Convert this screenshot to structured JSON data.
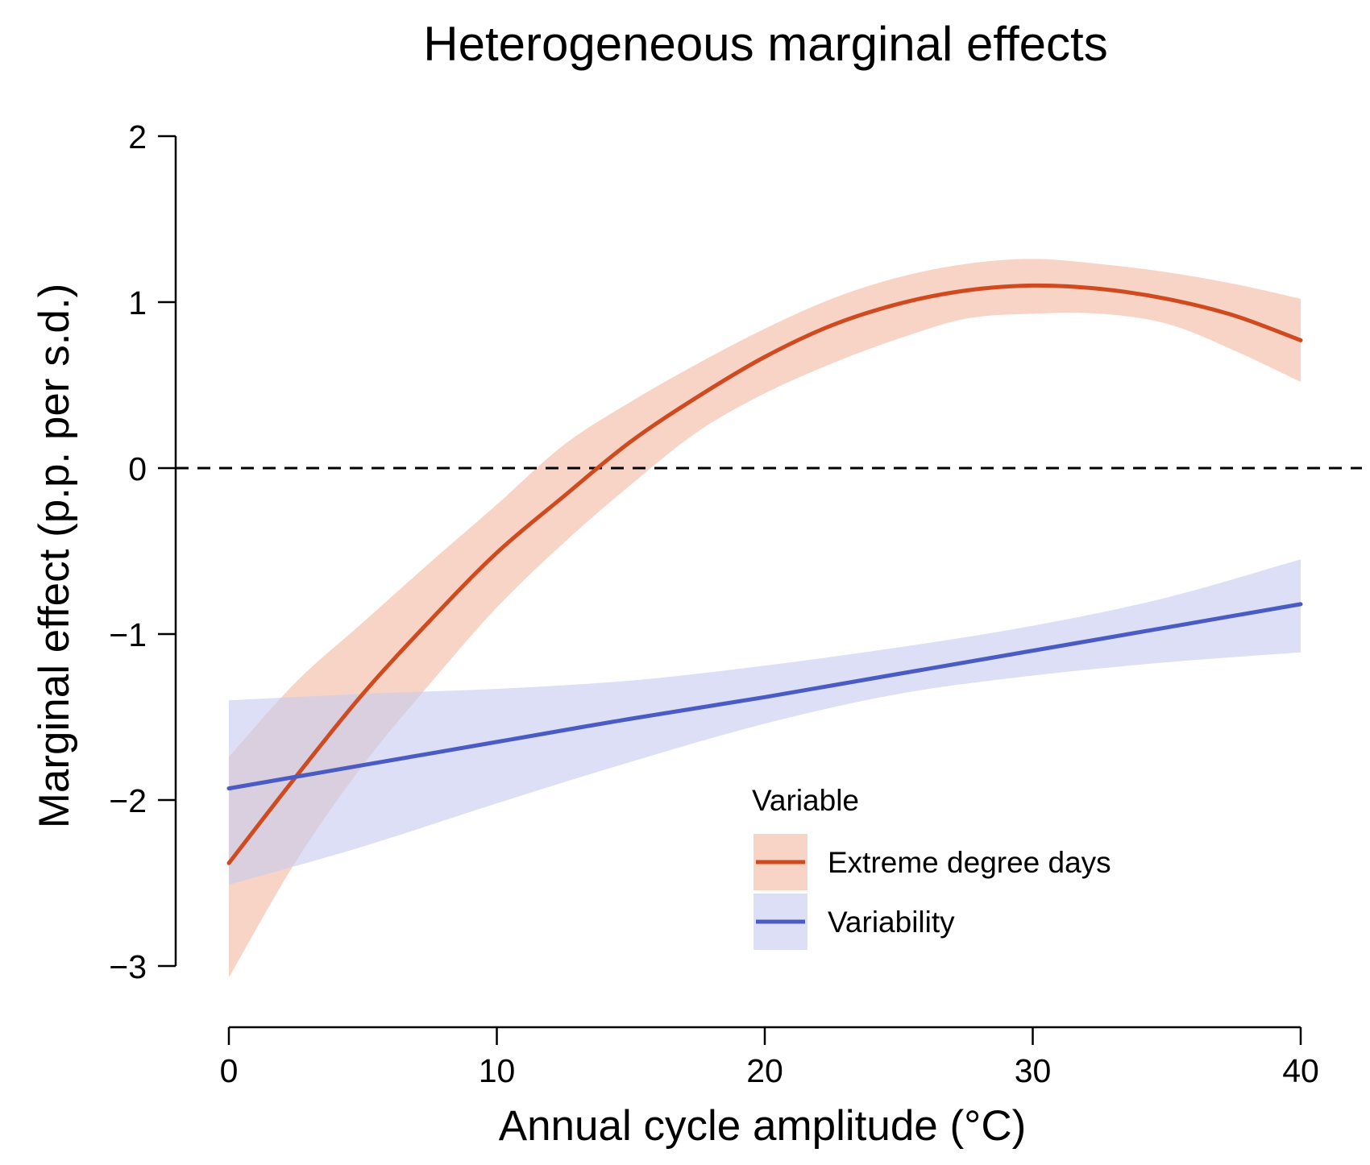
{
  "chart_data": {
    "type": "line",
    "title": "Heterogeneous marginal effects",
    "xlabel": "Annual cycle amplitude (°C)",
    "ylabel": "Marginal effect (p.p. per s.d.)",
    "xlim": [
      0,
      40
    ],
    "ylim": [
      -3,
      2
    ],
    "x_ticks": [
      0,
      10,
      20,
      30,
      40
    ],
    "x_tick_labels": [
      "0",
      "10",
      "20",
      "30",
      "40"
    ],
    "y_ticks": [
      -3,
      -2,
      -1,
      0,
      1,
      2
    ],
    "y_tick_labels": [
      "−3",
      "−2",
      "−1",
      "0",
      "1",
      "2"
    ],
    "grid": false,
    "reference_line": {
      "y": 0,
      "style": "dashed"
    },
    "legend": {
      "title": "Variable",
      "placement": "bottom-right"
    },
    "series": [
      {
        "name": "Extreme degree days",
        "color": "#d04a1f",
        "band_color": "#f4b9a3",
        "x": [
          0,
          2.5,
          5,
          7.5,
          10,
          12.5,
          15,
          17.5,
          20,
          22.5,
          25,
          27.5,
          30,
          32.5,
          35,
          37.5,
          40
        ],
        "y": [
          -2.38,
          -1.86,
          -1.36,
          -0.92,
          -0.51,
          -0.17,
          0.16,
          0.43,
          0.67,
          0.86,
          0.99,
          1.07,
          1.1,
          1.08,
          1.02,
          0.92,
          0.77
        ],
        "lower": [
          -3.07,
          -2.37,
          -1.79,
          -1.3,
          -0.84,
          -0.45,
          -0.1,
          0.22,
          0.45,
          0.63,
          0.78,
          0.9,
          0.93,
          0.93,
          0.87,
          0.71,
          0.52
        ],
        "upper": [
          -1.74,
          -1.29,
          -0.93,
          -0.57,
          -0.22,
          0.14,
          0.4,
          0.63,
          0.84,
          1.02,
          1.15,
          1.23,
          1.26,
          1.23,
          1.18,
          1.11,
          1.02
        ]
      },
      {
        "name": "Variability",
        "color": "#4a5bc4",
        "band_color": "#c6cbef",
        "x": [
          0,
          5,
          10,
          15,
          20,
          25,
          30,
          35,
          40
        ],
        "y": [
          -1.93,
          -1.79,
          -1.65,
          -1.51,
          -1.38,
          -1.24,
          -1.1,
          -0.96,
          -0.82
        ],
        "lower": [
          -2.51,
          -2.28,
          -2.02,
          -1.77,
          -1.54,
          -1.36,
          -1.25,
          -1.17,
          -1.11
        ],
        "upper": [
          -1.4,
          -1.36,
          -1.33,
          -1.28,
          -1.19,
          -1.08,
          -0.95,
          -0.78,
          -0.55
        ]
      }
    ]
  }
}
